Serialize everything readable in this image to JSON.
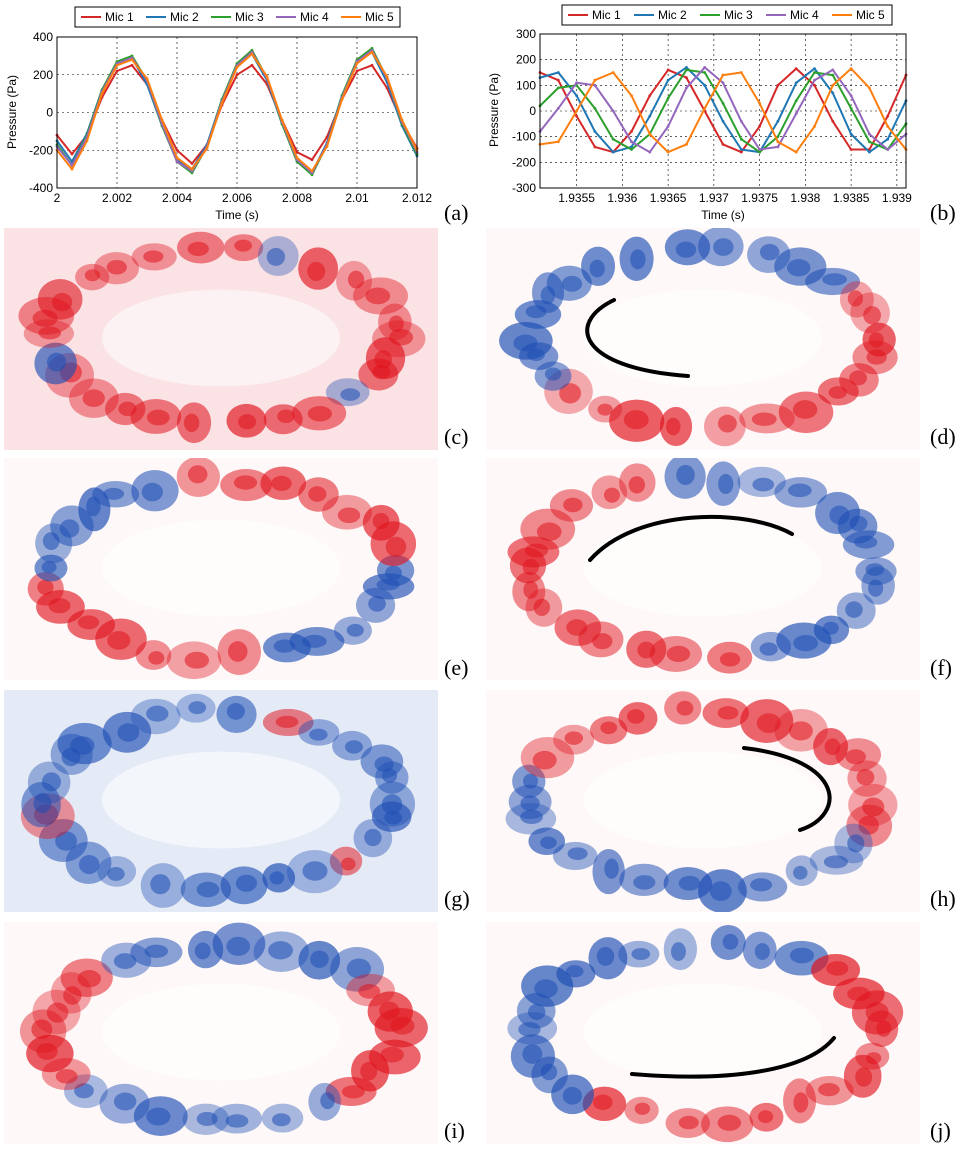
{
  "chart_data": [
    {
      "type": "line",
      "panel": "(a)",
      "xlabel": "Time (s)",
      "ylabel": "Pressure (Pa)",
      "xlim": [
        2.0,
        2.012
      ],
      "ylim": [
        -400,
        400
      ],
      "xticks": [
        2.0,
        2.002,
        2.004,
        2.006,
        2.008,
        2.01,
        2.012
      ],
      "xtick_labels": [
        "2",
        "2.002",
        "2.004",
        "2.006",
        "2.008",
        "2.01",
        "2.012"
      ],
      "yticks": [
        -400,
        -200,
        0,
        200,
        400
      ],
      "ytick_labels": [
        "-400",
        "-200",
        "0",
        "200",
        "400"
      ],
      "grid": true,
      "legend_position": "top",
      "series": [
        {
          "name": "Mic 1",
          "color": "#d62728",
          "x": [
            2.0,
            2.0005,
            2.001,
            2.0015,
            2.002,
            2.0025,
            2.003,
            2.0035,
            2.004,
            2.0045,
            2.005,
            2.0055,
            2.006,
            2.0065,
            2.007,
            2.0075,
            2.008,
            2.0085,
            2.009,
            2.0095,
            2.01,
            2.0105,
            2.011,
            2.0115,
            2.012
          ],
          "y": [
            -120,
            -220,
            -120,
            80,
            220,
            250,
            150,
            -40,
            -200,
            -270,
            -170,
            40,
            200,
            250,
            150,
            -40,
            -210,
            -250,
            -130,
            70,
            220,
            250,
            130,
            -50,
            -190
          ]
        },
        {
          "name": "Mic 2",
          "color": "#1f77b4",
          "x": [
            2.0,
            2.0005,
            2.001,
            2.0015,
            2.002,
            2.0025,
            2.003,
            2.0035,
            2.004,
            2.0045,
            2.005,
            2.0055,
            2.006,
            2.0065,
            2.007,
            2.0075,
            2.008,
            2.0085,
            2.009,
            2.0095,
            2.01,
            2.0105,
            2.011,
            2.0115,
            2.012
          ],
          "y": [
            -150,
            -260,
            -110,
            120,
            260,
            290,
            150,
            -70,
            -250,
            -300,
            -170,
            70,
            250,
            310,
            170,
            -60,
            -250,
            -320,
            -160,
            90,
            270,
            320,
            160,
            -70,
            -230
          ]
        },
        {
          "name": "Mic 3",
          "color": "#2ca02c",
          "x": [
            2.0,
            2.0005,
            2.001,
            2.0015,
            2.002,
            2.0025,
            2.003,
            2.0035,
            2.004,
            2.0045,
            2.005,
            2.0055,
            2.006,
            2.0065,
            2.007,
            2.0075,
            2.008,
            2.0085,
            2.009,
            2.0095,
            2.01,
            2.0105,
            2.011,
            2.0115,
            2.012
          ],
          "y": [
            -170,
            -280,
            -120,
            120,
            270,
            300,
            170,
            -70,
            -260,
            -320,
            -180,
            70,
            260,
            330,
            180,
            -60,
            -260,
            -330,
            -170,
            90,
            280,
            340,
            180,
            -60,
            -220
          ]
        },
        {
          "name": "Mic 4",
          "color": "#9467bd",
          "x": [
            2.0,
            2.0005,
            2.001,
            2.0015,
            2.002,
            2.0025,
            2.003,
            2.0035,
            2.004,
            2.0045,
            2.005,
            2.0055,
            2.006,
            2.0065,
            2.007,
            2.0075,
            2.008,
            2.0085,
            2.009,
            2.0095,
            2.01,
            2.0105,
            2.011,
            2.0115,
            2.012
          ],
          "y": [
            -180,
            -280,
            -130,
            110,
            260,
            290,
            170,
            -60,
            -260,
            -310,
            -180,
            60,
            250,
            320,
            180,
            -50,
            -250,
            -320,
            -170,
            80,
            270,
            330,
            180,
            -50,
            -210
          ]
        },
        {
          "name": "Mic 5",
          "color": "#ff7f0e",
          "x": [
            2.0,
            2.0005,
            2.001,
            2.0015,
            2.002,
            2.0025,
            2.003,
            2.0035,
            2.004,
            2.0045,
            2.005,
            2.0055,
            2.006,
            2.0065,
            2.007,
            2.0075,
            2.008,
            2.0085,
            2.009,
            2.0095,
            2.01,
            2.0105,
            2.011,
            2.0115,
            2.012
          ],
          "y": [
            -200,
            -300,
            -150,
            100,
            250,
            280,
            180,
            -40,
            -240,
            -300,
            -190,
            50,
            240,
            310,
            190,
            -40,
            -240,
            -310,
            -180,
            70,
            260,
            320,
            190,
            -40,
            -200
          ]
        }
      ]
    },
    {
      "type": "line",
      "panel": "(b)",
      "xlabel": "Time (s)",
      "ylabel": "Pressure (Pa)",
      "xlim": [
        1.9351,
        1.9391
      ],
      "ylim": [
        -300,
        300
      ],
      "xticks": [
        1.9355,
        1.936,
        1.9365,
        1.937,
        1.9375,
        1.938,
        1.9385,
        1.939
      ],
      "xtick_labels": [
        "1.9355",
        "1.936",
        "1.9365",
        "1.937",
        "1.9375",
        "1.938",
        "1.9385",
        "1.939"
      ],
      "yticks": [
        -300,
        -200,
        -100,
        0,
        100,
        200,
        300
      ],
      "ytick_labels": [
        "-300",
        "-200",
        "-100",
        "0",
        "100",
        "200",
        "300"
      ],
      "grid": true,
      "legend_position": "top",
      "series": [
        {
          "name": "Mic 1",
          "color": "#d62728",
          "x": [
            1.9351,
            1.9353,
            1.9355,
            1.9357,
            1.9359,
            1.9361,
            1.9363,
            1.9365,
            1.9367,
            1.9369,
            1.9371,
            1.9373,
            1.9375,
            1.9377,
            1.9379,
            1.9381,
            1.9383,
            1.9385,
            1.9387,
            1.9389,
            1.9391
          ],
          "y": [
            150,
            120,
            -20,
            -140,
            -160,
            -80,
            60,
            160,
            130,
            0,
            -130,
            -160,
            -60,
            100,
            165,
            100,
            -40,
            -150,
            -150,
            -20,
            140
          ]
        },
        {
          "name": "Mic 2",
          "color": "#1f77b4",
          "x": [
            1.9351,
            1.9353,
            1.9355,
            1.9357,
            1.9359,
            1.9361,
            1.9363,
            1.9365,
            1.9367,
            1.9369,
            1.9371,
            1.9373,
            1.9375,
            1.9377,
            1.9379,
            1.9381,
            1.9383,
            1.9385,
            1.9387,
            1.9389,
            1.9391
          ],
          "y": [
            130,
            150,
            60,
            -80,
            -160,
            -140,
            -20,
            120,
            170,
            100,
            -40,
            -150,
            -160,
            -40,
            110,
            165,
            70,
            -90,
            -160,
            -110,
            40
          ]
        },
        {
          "name": "Mic 3",
          "color": "#2ca02c",
          "x": [
            1.9351,
            1.9353,
            1.9355,
            1.9357,
            1.9359,
            1.9361,
            1.9363,
            1.9365,
            1.9367,
            1.9369,
            1.9371,
            1.9373,
            1.9375,
            1.9377,
            1.9379,
            1.9381,
            1.9383,
            1.9385,
            1.9387,
            1.9389,
            1.9391
          ],
          "y": [
            20,
            90,
            100,
            10,
            -110,
            -150,
            -90,
            50,
            160,
            150,
            30,
            -110,
            -160,
            -100,
            40,
            150,
            140,
            10,
            -120,
            -150,
            -50
          ]
        },
        {
          "name": "Mic 4",
          "color": "#9467bd",
          "x": [
            1.9351,
            1.9353,
            1.9355,
            1.9357,
            1.9359,
            1.9361,
            1.9363,
            1.9365,
            1.9367,
            1.9369,
            1.9371,
            1.9373,
            1.9375,
            1.9377,
            1.9379,
            1.9381,
            1.9383,
            1.9385,
            1.9387,
            1.9389,
            1.9391
          ],
          "y": [
            -80,
            10,
            110,
            100,
            0,
            -120,
            -160,
            -60,
            90,
            170,
            110,
            -40,
            -150,
            -140,
            -10,
            120,
            160,
            60,
            -90,
            -150,
            -90
          ]
        },
        {
          "name": "Mic 5",
          "color": "#ff7f0e",
          "x": [
            1.9351,
            1.9353,
            1.9355,
            1.9357,
            1.9359,
            1.9361,
            1.9363,
            1.9365,
            1.9367,
            1.9369,
            1.9371,
            1.9373,
            1.9375,
            1.9377,
            1.9379,
            1.9381,
            1.9383,
            1.9385,
            1.9387,
            1.9389,
            1.9391
          ],
          "y": [
            -130,
            -120,
            0,
            120,
            150,
            60,
            -90,
            -160,
            -130,
            10,
            140,
            150,
            30,
            -120,
            -160,
            -60,
            100,
            165,
            90,
            -60,
            -150
          ]
        }
      ]
    }
  ],
  "panels": [
    {
      "label": "(c)",
      "mode": "symmetric",
      "tint": "red",
      "swirl": null
    },
    {
      "label": "(d)",
      "mode": "rotating",
      "tint": "mixed",
      "swirl": "left"
    },
    {
      "label": "(e)",
      "mode": "symmetric",
      "tint": "mixed",
      "swirl": null
    },
    {
      "label": "(f)",
      "mode": "rotating",
      "tint": "mixed",
      "swirl": "top"
    },
    {
      "label": "(g)",
      "mode": "symmetric",
      "tint": "blue",
      "swirl": null
    },
    {
      "label": "(h)",
      "mode": "rotating",
      "tint": "mixed",
      "swirl": "right"
    },
    {
      "label": "(i)",
      "mode": "symmetric",
      "tint": "mixed",
      "swirl": null
    },
    {
      "label": "(j)",
      "mode": "rotating",
      "tint": "mixed",
      "swirl": "bottom"
    }
  ],
  "colors": {
    "positive": "#e0141e",
    "negative": "#1e4fb4",
    "swirl": "#000000"
  }
}
